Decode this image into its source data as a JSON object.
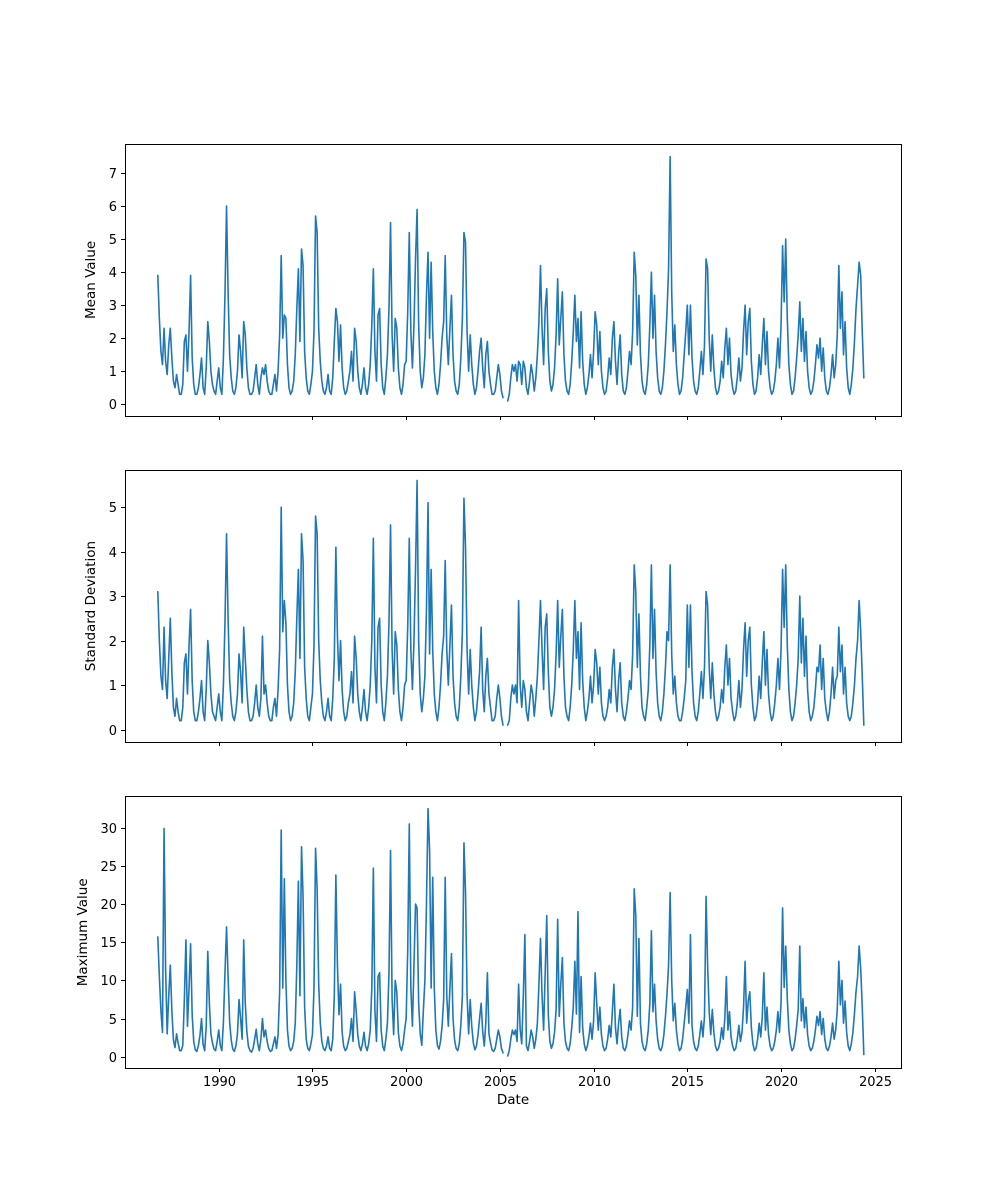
{
  "figure": {
    "background_color": "#ffffff",
    "axis_color": "#000000",
    "line_color": "#1f77b4"
  },
  "chart_data": [
    {
      "type": "line",
      "title": "",
      "ylabel": "Mean Value",
      "xlabel": "",
      "legend": "none",
      "grid": false,
      "x0": 1986.75,
      "dx_years": 0.0833333,
      "xlim": [
        1985.0,
        2026.4
      ],
      "ylim": [
        -0.35,
        7.88
      ],
      "yticks": [
        0,
        1,
        2,
        3,
        4,
        5,
        6,
        7
      ],
      "xticks": [
        1990,
        1995,
        2000,
        2005,
        2010,
        2015,
        2020,
        2025
      ],
      "show_xticklabels": false,
      "values": [
        3.9,
        2.6,
        1.6,
        1.2,
        2.3,
        1.3,
        0.9,
        1.8,
        2.3,
        1.4,
        0.7,
        0.5,
        0.9,
        0.6,
        0.3,
        0.3,
        0.6,
        1.9,
        2.1,
        1.0,
        2.2,
        3.9,
        1.4,
        0.6,
        0.3,
        0.3,
        0.5,
        0.9,
        1.4,
        0.5,
        0.3,
        1.1,
        2.5,
        1.9,
        1.0,
        0.6,
        0.4,
        0.3,
        0.7,
        1.1,
        0.5,
        0.3,
        1.4,
        3.3,
        6.0,
        3.4,
        1.5,
        0.8,
        0.4,
        0.3,
        0.5,
        1.0,
        2.1,
        1.6,
        0.8,
        2.5,
        2.1,
        1.1,
        0.5,
        0.3,
        0.3,
        0.4,
        0.8,
        1.2,
        0.6,
        0.3,
        0.8,
        1.1,
        0.9,
        1.2,
        0.7,
        0.4,
        0.3,
        0.3,
        0.6,
        0.9,
        0.4,
        1.0,
        2.1,
        4.5,
        2.0,
        2.7,
        2.6,
        1.2,
        0.5,
        0.3,
        0.4,
        0.7,
        1.5,
        2.9,
        4.1,
        1.9,
        4.7,
        4.2,
        1.6,
        0.8,
        0.4,
        0.3,
        0.6,
        1.0,
        2.2,
        5.7,
        5.2,
        2.3,
        1.3,
        0.7,
        0.4,
        0.3,
        0.5,
        0.9,
        0.4,
        0.3,
        0.8,
        1.9,
        2.9,
        2.5,
        1.3,
        2.4,
        1.1,
        0.5,
        0.3,
        0.4,
        0.7,
        1.0,
        1.6,
        0.7,
        2.3,
        1.9,
        1.0,
        0.5,
        0.3,
        0.6,
        1.1,
        0.5,
        0.3,
        0.6,
        1.2,
        2.4,
        4.1,
        1.6,
        0.7,
        2.7,
        2.9,
        1.2,
        0.5,
        0.3,
        0.8,
        1.5,
        2.9,
        5.5,
        2.1,
        1.0,
        2.6,
        2.3,
        1.1,
        0.5,
        0.3,
        0.6,
        1.2,
        1.3,
        2.8,
        5.2,
        2.2,
        1.1,
        2.4,
        4.4,
        5.9,
        2.4,
        1.0,
        0.5,
        0.8,
        1.5,
        3.3,
        4.6,
        2.0,
        4.3,
        2.2,
        1.0,
        0.5,
        0.3,
        0.6,
        1.2,
        2.0,
        2.5,
        4.5,
        2.1,
        1.2,
        2.3,
        3.3,
        1.5,
        0.7,
        0.4,
        0.3,
        0.6,
        1.4,
        2.6,
        5.2,
        4.9,
        2.2,
        1.0,
        2.1,
        1.2,
        0.6,
        0.3,
        0.5,
        1.0,
        1.6,
        2.0,
        1.1,
        0.5,
        1.5,
        1.9,
        1.0,
        0.6,
        0.3,
        0.3,
        0.4,
        0.8,
        1.2,
        0.9,
        0.4,
        0.2,
        null,
        null,
        0.1,
        0.3,
        0.8,
        1.2,
        1.0,
        1.2,
        0.7,
        1.3,
        1.2,
        0.6,
        1.3,
        1.1,
        0.5,
        0.3,
        0.7,
        1.2,
        0.9,
        0.4,
        0.8,
        1.5,
        2.5,
        4.2,
        2.3,
        1.2,
        2.9,
        3.5,
        1.6,
        0.7,
        0.4,
        0.6,
        1.1,
        2.1,
        3.8,
        1.8,
        2.6,
        3.4,
        1.5,
        0.7,
        0.4,
        0.3,
        0.6,
        1.3,
        2.2,
        3.3,
        1.9,
        2.6,
        1.1,
        2.8,
        1.3,
        0.6,
        0.3,
        0.5,
        0.9,
        1.5,
        0.8,
        1.6,
        2.8,
        2.4,
        1.2,
        2.2,
        1.0,
        0.5,
        0.3,
        0.4,
        0.8,
        1.4,
        0.9,
        2.0,
        2.5,
        1.3,
        0.6,
        1.5,
        2.1,
        0.9,
        0.4,
        0.3,
        0.5,
        1.0,
        1.6,
        1.2,
        2.2,
        4.6,
        3.9,
        1.8,
        3.3,
        1.5,
        0.7,
        0.4,
        0.3,
        0.6,
        1.2,
        2.4,
        4.0,
        2.0,
        3.3,
        1.6,
        0.8,
        0.4,
        0.3,
        0.5,
        1.0,
        1.8,
        2.8,
        4.1,
        7.5,
        3.4,
        1.6,
        2.4,
        1.2,
        0.6,
        0.3,
        0.4,
        0.8,
        1.5,
        2.2,
        3.0,
        1.5,
        3.0,
        1.4,
        0.7,
        0.4,
        0.3,
        0.5,
        1.0,
        1.6,
        0.9,
        1.8,
        4.4,
        4.1,
        2.0,
        1.0,
        2.1,
        1.1,
        0.5,
        0.3,
        0.4,
        0.7,
        1.3,
        0.8,
        1.7,
        2.3,
        1.2,
        2.0,
        0.9,
        0.5,
        0.3,
        0.4,
        0.8,
        1.4,
        0.7,
        1.1,
        2.2,
        3.0,
        1.5,
        2.5,
        2.9,
        1.3,
        0.6,
        0.3,
        0.4,
        0.8,
        1.5,
        0.9,
        1.8,
        2.6,
        1.2,
        2.2,
        1.0,
        0.5,
        0.3,
        0.4,
        0.7,
        1.2,
        2.0,
        1.1,
        2.4,
        4.8,
        3.1,
        5.0,
        2.6,
        1.2,
        0.6,
        0.3,
        0.4,
        0.8,
        1.4,
        2.1,
        3.1,
        1.6,
        2.6,
        1.3,
        2.2,
        1.0,
        0.5,
        0.3,
        0.4,
        0.7,
        1.2,
        1.8,
        1.4,
        2.0,
        1.0,
        1.7,
        0.8,
        0.4,
        0.3,
        0.5,
        0.9,
        1.5,
        0.8,
        1.2,
        2.1,
        4.2,
        2.3,
        3.4,
        1.5,
        2.5,
        1.1,
        0.5,
        0.3,
        0.6,
        1.1,
        1.9,
        2.9,
        3.6,
        4.3,
        3.9,
        2.2,
        0.8
      ]
    },
    {
      "type": "line",
      "title": "",
      "ylabel": "Standard Deviation",
      "xlabel": "",
      "legend": "none",
      "grid": false,
      "x0": 1986.75,
      "dx_years": 0.0833333,
      "xlim": [
        1985.0,
        2026.4
      ],
      "ylim": [
        -0.28,
        5.83
      ],
      "yticks": [
        0,
        1,
        2,
        3,
        4,
        5
      ],
      "xticks": [
        1990,
        1995,
        2000,
        2005,
        2010,
        2015,
        2020,
        2025
      ],
      "show_xticklabels": false,
      "values": [
        3.1,
        2.0,
        1.2,
        0.9,
        2.3,
        1.1,
        0.7,
        1.6,
        2.5,
        1.3,
        0.5,
        0.3,
        0.7,
        0.4,
        0.2,
        0.2,
        0.5,
        1.5,
        1.7,
        0.8,
        1.9,
        2.7,
        1.1,
        0.4,
        0.2,
        0.2,
        0.4,
        0.7,
        1.1,
        0.4,
        0.2,
        0.9,
        2.0,
        1.5,
        0.8,
        0.4,
        0.3,
        0.2,
        0.5,
        0.8,
        0.4,
        0.2,
        1.0,
        2.4,
        4.4,
        2.5,
        1.1,
        0.6,
        0.3,
        0.2,
        0.4,
        0.8,
        1.7,
        1.3,
        0.6,
        2.3,
        1.6,
        0.9,
        0.4,
        0.2,
        0.2,
        0.3,
        0.6,
        1.0,
        0.5,
        0.3,
        0.7,
        2.1,
        0.8,
        1.0,
        0.6,
        0.3,
        0.2,
        0.2,
        0.5,
        0.7,
        0.3,
        0.9,
        1.8,
        5.0,
        2.2,
        2.9,
        2.4,
        1.0,
        0.4,
        0.2,
        0.3,
        0.6,
        1.3,
        2.5,
        3.6,
        1.6,
        4.4,
        3.8,
        1.4,
        0.7,
        0.3,
        0.2,
        0.5,
        0.8,
        1.9,
        4.8,
        4.4,
        2.0,
        1.1,
        0.6,
        0.3,
        0.2,
        0.4,
        0.7,
        0.3,
        0.2,
        0.7,
        1.6,
        4.1,
        2.1,
        1.1,
        2.0,
        0.9,
        0.4,
        0.2,
        0.3,
        0.6,
        0.8,
        1.3,
        0.6,
        2.1,
        1.6,
        0.8,
        0.4,
        0.2,
        0.5,
        0.9,
        0.4,
        0.2,
        0.5,
        1.0,
        2.0,
        4.3,
        1.4,
        0.6,
        2.3,
        2.5,
        1.0,
        0.4,
        0.2,
        0.6,
        1.2,
        2.4,
        4.6,
        1.8,
        0.8,
        2.2,
        1.9,
        0.9,
        0.4,
        0.2,
        0.5,
        1.0,
        1.1,
        2.3,
        4.3,
        1.8,
        0.9,
        2.0,
        3.6,
        5.6,
        2.0,
        0.8,
        0.4,
        0.7,
        1.2,
        2.7,
        5.1,
        1.7,
        3.6,
        1.8,
        0.8,
        0.4,
        0.2,
        0.5,
        1.0,
        1.7,
        2.1,
        3.8,
        1.8,
        1.0,
        1.9,
        2.8,
        1.2,
        0.6,
        0.3,
        0.2,
        0.5,
        1.2,
        2.2,
        5.2,
        4.1,
        1.8,
        0.8,
        1.8,
        1.0,
        0.5,
        0.2,
        0.4,
        0.8,
        1.3,
        2.3,
        0.9,
        0.4,
        1.2,
        1.6,
        0.8,
        0.5,
        0.2,
        0.2,
        0.3,
        0.7,
        1.0,
        0.7,
        0.3,
        0.1,
        null,
        null,
        0.1,
        0.2,
        0.7,
        1.0,
        0.8,
        1.0,
        0.6,
        2.9,
        1.0,
        0.5,
        1.1,
        0.9,
        0.4,
        0.2,
        0.6,
        1.0,
        0.8,
        0.3,
        0.7,
        1.2,
        2.0,
        2.9,
        1.8,
        0.9,
        2.3,
        2.6,
        1.3,
        0.5,
        0.3,
        0.5,
        0.9,
        1.7,
        2.9,
        1.4,
        2.1,
        2.7,
        1.2,
        0.5,
        0.3,
        0.2,
        0.5,
        1.0,
        1.8,
        2.9,
        1.6,
        2.2,
        0.9,
        2.4,
        1.1,
        0.5,
        0.2,
        0.4,
        0.7,
        1.2,
        0.6,
        1.0,
        1.8,
        1.5,
        0.8,
        1.4,
        0.6,
        0.3,
        0.2,
        0.3,
        0.5,
        0.9,
        0.6,
        1.4,
        1.8,
        0.9,
        0.4,
        1.1,
        1.5,
        0.6,
        0.3,
        0.2,
        0.4,
        0.7,
        1.1,
        0.9,
        1.7,
        3.7,
        3.1,
        1.4,
        2.6,
        1.2,
        0.5,
        0.3,
        0.2,
        0.5,
        0.9,
        1.9,
        3.7,
        1.6,
        2.7,
        1.3,
        0.6,
        0.3,
        0.2,
        0.4,
        0.8,
        1.4,
        2.2,
        2.0,
        3.7,
        1.7,
        0.8,
        1.2,
        0.6,
        0.3,
        0.2,
        0.2,
        0.4,
        0.7,
        1.1,
        2.8,
        1.4,
        2.8,
        1.3,
        0.6,
        0.3,
        0.2,
        0.4,
        0.8,
        1.3,
        0.7,
        1.4,
        3.1,
        2.8,
        1.4,
        0.7,
        1.5,
        0.8,
        0.4,
        0.2,
        0.3,
        0.5,
        0.9,
        0.6,
        1.4,
        1.9,
        1.0,
        1.6,
        0.7,
        0.4,
        0.2,
        0.3,
        0.6,
        1.1,
        0.5,
        0.9,
        1.8,
        2.4,
        1.2,
        2.0,
        2.3,
        1.0,
        0.5,
        0.2,
        0.3,
        0.6,
        1.2,
        0.7,
        1.5,
        2.2,
        1.0,
        1.8,
        0.8,
        0.4,
        0.2,
        0.3,
        0.6,
        1.0,
        1.6,
        0.9,
        1.8,
        3.6,
        2.3,
        3.7,
        1.9,
        0.9,
        0.4,
        0.2,
        0.3,
        0.6,
        1.0,
        1.6,
        3.0,
        1.5,
        2.5,
        1.2,
        2.1,
        0.9,
        0.4,
        0.2,
        0.3,
        0.5,
        0.9,
        1.4,
        1.3,
        1.9,
        0.9,
        1.6,
        0.7,
        0.4,
        0.2,
        0.4,
        0.8,
        1.4,
        0.7,
        1.1,
        1.2,
        2.3,
        1.3,
        1.9,
        0.8,
        1.4,
        0.6,
        0.3,
        0.2,
        0.3,
        0.6,
        1.0,
        1.6,
        2.0,
        2.9,
        2.2,
        1.2,
        0.1
      ]
    },
    {
      "type": "line",
      "title": "",
      "ylabel": "Maximum Value",
      "xlabel": "Date",
      "legend": "none",
      "grid": false,
      "x0": 1986.75,
      "dx_years": 0.0833333,
      "xlim": [
        1985.0,
        2026.4
      ],
      "ylim": [
        -1.5,
        34.1
      ],
      "yticks": [
        0,
        5,
        10,
        15,
        20,
        25,
        30
      ],
      "xticks": [
        1990,
        1995,
        2000,
        2005,
        2010,
        2015,
        2020,
        2025
      ],
      "show_xticklabels": true,
      "values": [
        15.7,
        10.5,
        6.0,
        3.2,
        29.9,
        11.5,
        3.0,
        8.0,
        12.0,
        6.0,
        2.2,
        1.2,
        3.0,
        1.8,
        0.8,
        0.8,
        1.5,
        7.5,
        15.3,
        4.0,
        9.0,
        14.8,
        5.5,
        2.0,
        0.9,
        0.7,
        1.5,
        2.8,
        5.0,
        1.6,
        0.8,
        4.0,
        13.8,
        7.0,
        3.0,
        1.8,
        1.0,
        0.8,
        2.0,
        3.5,
        1.5,
        0.8,
        4.5,
        11.0,
        17.0,
        10.5,
        4.5,
        2.2,
        1.0,
        0.7,
        1.4,
        3.0,
        7.5,
        5.0,
        2.3,
        15.3,
        7.0,
        3.3,
        1.4,
        0.8,
        0.6,
        1.1,
        2.3,
        3.6,
        1.7,
        0.8,
        2.3,
        5.0,
        2.6,
        3.5,
        2.0,
        1.1,
        0.7,
        0.8,
        1.7,
        2.6,
        1.1,
        2.9,
        8.5,
        29.7,
        9.0,
        23.3,
        10.0,
        3.5,
        1.4,
        0.8,
        1.1,
        2.0,
        4.4,
        12.0,
        23.0,
        8.0,
        27.5,
        21.0,
        6.5,
        2.3,
        1.1,
        0.8,
        1.7,
        2.9,
        9.0,
        27.3,
        22.0,
        9.5,
        4.5,
        2.0,
        1.1,
        0.8,
        1.4,
        2.6,
        1.1,
        0.8,
        2.3,
        8.0,
        23.8,
        12.0,
        5.5,
        9.5,
        3.2,
        1.4,
        0.8,
        1.1,
        2.0,
        2.9,
        5.0,
        2.0,
        8.5,
        6.0,
        2.9,
        1.4,
        0.8,
        1.7,
        3.2,
        1.4,
        0.8,
        1.7,
        3.5,
        9.0,
        24.7,
        6.0,
        2.0,
        10.5,
        11.0,
        3.5,
        1.4,
        0.8,
        2.3,
        4.4,
        11.0,
        27.0,
        7.5,
        2.9,
        10.0,
        8.5,
        3.2,
        1.4,
        0.8,
        1.7,
        3.5,
        5.0,
        14.0,
        30.5,
        9.0,
        4.0,
        12.0,
        20.0,
        19.5,
        7.0,
        3.0,
        1.5,
        6.0,
        10.0,
        20.0,
        32.5,
        27.0,
        9.0,
        23.5,
        9.0,
        3.5,
        1.5,
        1.0,
        2.0,
        4.0,
        7.5,
        23.5,
        8.0,
        4.0,
        9.0,
        13.5,
        5.0,
        2.2,
        1.1,
        0.8,
        1.7,
        4.1,
        8.0,
        28.0,
        21.5,
        8.0,
        3.0,
        7.5,
        4.0,
        1.8,
        0.9,
        1.4,
        2.9,
        5.0,
        7.0,
        3.3,
        1.4,
        4.5,
        11.0,
        3.0,
        1.8,
        0.9,
        0.7,
        1.1,
        2.3,
        3.5,
        2.6,
        1.1,
        0.5,
        null,
        null,
        0.1,
        0.8,
        2.3,
        3.5,
        2.9,
        3.5,
        2.0,
        9.5,
        3.5,
        1.7,
        8.0,
        16.0,
        1.4,
        0.8,
        2.0,
        3.5,
        2.6,
        1.1,
        2.3,
        4.4,
        9.5,
        15.5,
        8.0,
        3.5,
        11.0,
        18.5,
        5.5,
        2.0,
        1.1,
        1.7,
        3.2,
        6.2,
        18.0,
        5.3,
        9.5,
        13.0,
        4.4,
        2.0,
        1.1,
        0.8,
        1.7,
        3.8,
        6.5,
        12.5,
        5.6,
        19.0,
        3.2,
        10.5,
        3.8,
        1.7,
        0.8,
        1.4,
        2.6,
        4.4,
        2.3,
        4.7,
        11.0,
        7.0,
        3.5,
        6.5,
        2.9,
        1.4,
        0.8,
        1.1,
        2.3,
        4.1,
        2.6,
        5.9,
        9.5,
        3.8,
        1.7,
        4.4,
        6.2,
        2.6,
        1.1,
        0.8,
        1.4,
        2.9,
        4.7,
        3.5,
        6.5,
        22.0,
        18.5,
        5.3,
        15.5,
        4.4,
        2.0,
        1.1,
        0.8,
        1.7,
        3.5,
        7.0,
        16.5,
        5.9,
        9.5,
        4.7,
        2.3,
        1.1,
        0.8,
        1.4,
        2.9,
        5.3,
        8.2,
        12.0,
        21.5,
        10.0,
        4.7,
        7.0,
        3.5,
        1.7,
        0.8,
        1.1,
        2.3,
        4.4,
        6.5,
        8.8,
        4.4,
        16.0,
        4.1,
        2.0,
        1.1,
        0.8,
        1.4,
        2.9,
        4.7,
        2.6,
        5.3,
        21.0,
        12.0,
        5.9,
        2.9,
        6.2,
        3.2,
        1.4,
        0.8,
        1.1,
        2.0,
        3.8,
        2.3,
        5.0,
        10.5,
        3.5,
        5.9,
        2.6,
        1.4,
        0.8,
        1.1,
        2.3,
        4.1,
        2.0,
        3.2,
        6.5,
        12.5,
        4.4,
        7.3,
        8.5,
        3.8,
        1.7,
        0.8,
        1.1,
        2.3,
        4.4,
        2.6,
        5.3,
        11.0,
        3.5,
        6.5,
        2.9,
        1.4,
        0.8,
        1.1,
        2.0,
        3.5,
        5.9,
        3.2,
        7.0,
        19.5,
        9.1,
        14.5,
        7.6,
        3.5,
        1.7,
        0.8,
        1.1,
        2.3,
        4.1,
        6.2,
        14.5,
        4.7,
        7.6,
        3.8,
        6.5,
        2.9,
        1.4,
        0.8,
        1.1,
        2.0,
        3.5,
        5.3,
        4.1,
        5.9,
        2.9,
        5.0,
        2.3,
        1.1,
        0.8,
        1.4,
        2.6,
        4.4,
        2.3,
        3.5,
        6.2,
        12.5,
        6.8,
        10.0,
        4.4,
        7.3,
        3.2,
        1.4,
        0.8,
        1.7,
        3.2,
        5.6,
        8.5,
        10.5,
        14.5,
        11.5,
        6.5,
        0.3
      ]
    }
  ]
}
